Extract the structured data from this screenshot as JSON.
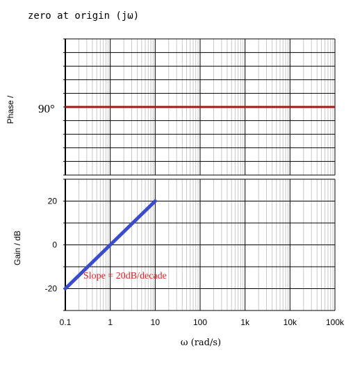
{
  "chart_data": [
    {
      "type": "line",
      "panel": "phase",
      "title": "zero at origin (jω)",
      "ylabel": "Phase /",
      "x_scale": "log",
      "xlim": [
        0.1,
        100000
      ],
      "ylim": [
        0,
        180
      ],
      "grid": true,
      "annotations": [
        {
          "text": "90°",
          "y": 90
        }
      ],
      "series": [
        {
          "x": [
            0.1,
            100000
          ],
          "y": [
            90,
            90
          ],
          "color": "#a01818"
        }
      ]
    },
    {
      "type": "line",
      "panel": "gain",
      "ylabel": "Gain / dB",
      "xlabel": "ω (rad/s)",
      "x_scale": "log",
      "xlim": [
        0.1,
        100000
      ],
      "ylim": [
        -30,
        30
      ],
      "grid": true,
      "x_tick_labels": [
        "0.1",
        "1",
        "10",
        "100",
        "1k",
        "10k",
        "100k"
      ],
      "y_tick_labels": [
        "20",
        "0",
        "-20"
      ],
      "y_ticks": [
        20,
        0,
        -20
      ],
      "annotations": [
        {
          "text": "Slope = 20dB/decade",
          "color": "#e02020"
        }
      ],
      "series": [
        {
          "x": [
            0.1,
            10
          ],
          "y": [
            -20,
            20
          ],
          "color": "#3a4ccc"
        }
      ]
    }
  ]
}
